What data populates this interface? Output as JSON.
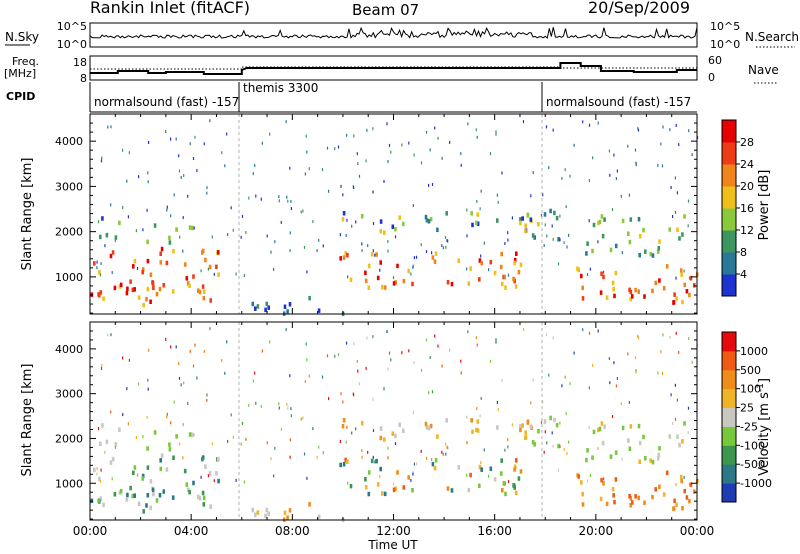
{
  "header": {
    "station": "Rankin Inlet (fitACF)",
    "beam": "Beam 07",
    "date": "20/Sep/2009"
  },
  "top_panels": {
    "nsky_label": "N.Sky",
    "nsky_ticks": [
      "10^5",
      "10^0"
    ],
    "nsearch_label": "N.Search",
    "nsearch_ticks": [
      "10^5",
      "10^0"
    ],
    "freq_label": "Freq.",
    "freq_unit": "[MHz]",
    "freq_ticks": [
      "18",
      "8"
    ],
    "nave_label": "Nave",
    "nave_ticks": [
      "60",
      "0"
    ],
    "cpid_label": "CPID",
    "modes": [
      {
        "label": "normalsound (fast) -157",
        "start_h": 0,
        "end_h": 6
      },
      {
        "label": "themis 3300",
        "start_h": 6,
        "end_h": 18
      },
      {
        "label": "normalsound (fast) -157",
        "start_h": 18,
        "end_h": 24
      }
    ]
  },
  "chart_data": [
    {
      "type": "heatmap",
      "title": "",
      "xlabel": "",
      "ylabel": "Slant Range [km]",
      "xlim": [
        0,
        24
      ],
      "ylim": [
        180,
        4600
      ],
      "y_ticks": [
        1000,
        2000,
        3000,
        4000
      ],
      "colorbar": {
        "label": "Power [dB]",
        "ticks": [
          "4",
          "8",
          "12",
          "16",
          "20",
          "24",
          "28"
        ],
        "colors": [
          "#1e32d2",
          "#2a7898",
          "#3c9660",
          "#8ac83c",
          "#f0c018",
          "#f08418",
          "#f03c14",
          "#e60000"
        ]
      }
    },
    {
      "type": "heatmap",
      "title": "",
      "xlabel": "Time UT",
      "ylabel": "Slant Range [km]",
      "xlim": [
        0,
        24
      ],
      "ylim": [
        180,
        4600
      ],
      "x_ticks": [
        "00:00",
        "04:00",
        "08:00",
        "12:00",
        "16:00",
        "20:00",
        "00:00"
      ],
      "y_ticks": [
        1000,
        2000,
        3000,
        4000
      ],
      "colorbar": {
        "label": "Velocity [m s^-1]",
        "ticks": [
          "1000",
          "500",
          "100",
          "25",
          "-25",
          "-100",
          "-500",
          "-1000"
        ],
        "colors": [
          "#1e3cb4",
          "#2a7888",
          "#3c9650",
          "#78c83c",
          "#c8c8c0",
          "#f0b428",
          "#f08c18",
          "#f05a14",
          "#e60a0a"
        ]
      }
    }
  ]
}
